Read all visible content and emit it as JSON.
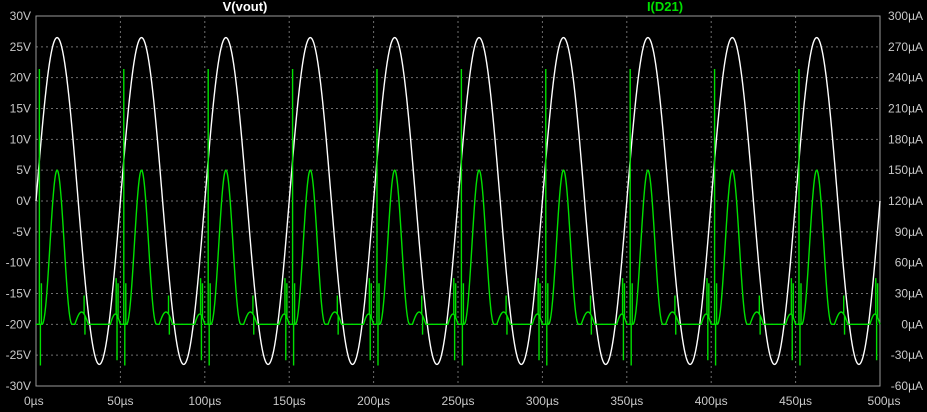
{
  "chart_data": {
    "type": "line",
    "background": "#000000",
    "grid": true,
    "grid_style": "dashed",
    "x": {
      "range": [
        0,
        500
      ],
      "unit": "µs",
      "ticks": [
        0,
        50,
        100,
        150,
        200,
        250,
        300,
        350,
        400,
        450,
        500
      ],
      "tick_labels": [
        "0µs",
        "50µs",
        "100µs",
        "150µs",
        "200µs",
        "250µs",
        "300µs",
        "350µs",
        "400µs",
        "450µs",
        "500µs"
      ]
    },
    "y_left": {
      "range": [
        -30,
        30
      ],
      "unit": "V",
      "ticks": [
        30,
        25,
        20,
        15,
        10,
        5,
        0,
        -5,
        -10,
        -15,
        -20,
        -25,
        -30
      ],
      "tick_labels": [
        "30V",
        "25V",
        "20V",
        "15V",
        "10V",
        "5V",
        "0V",
        "-5V",
        "-10V",
        "-15V",
        "-20V",
        "-25V",
        "-30V"
      ]
    },
    "y_right": {
      "range": [
        -60,
        300
      ],
      "unit": "µA",
      "ticks": [
        300,
        270,
        240,
        210,
        180,
        150,
        120,
        90,
        60,
        30,
        0,
        -30,
        -60
      ],
      "tick_labels": [
        "300µA",
        "270µA",
        "240µA",
        "210µA",
        "180µA",
        "150µA",
        "120µA",
        "90µA",
        "60µA",
        "30µA",
        "0µA",
        "-30µA",
        "-60µA"
      ]
    },
    "series": [
      {
        "name": "V(vout)",
        "color": "#ffffff",
        "axis": "left",
        "period_us": 50,
        "amplitude_V": 26.5,
        "phase_peak_us": 12.5,
        "peaks_V": 26.5,
        "troughs_V": -26.5
      },
      {
        "name": "I(D21)",
        "color": "#00e000",
        "axis": "right",
        "period_us": 50,
        "peak_uA": 150,
        "peak_time_us": 12.5,
        "baseline_uA": 0,
        "spike_max_uA": 270,
        "spike_min_uA": -40
      }
    ]
  }
}
